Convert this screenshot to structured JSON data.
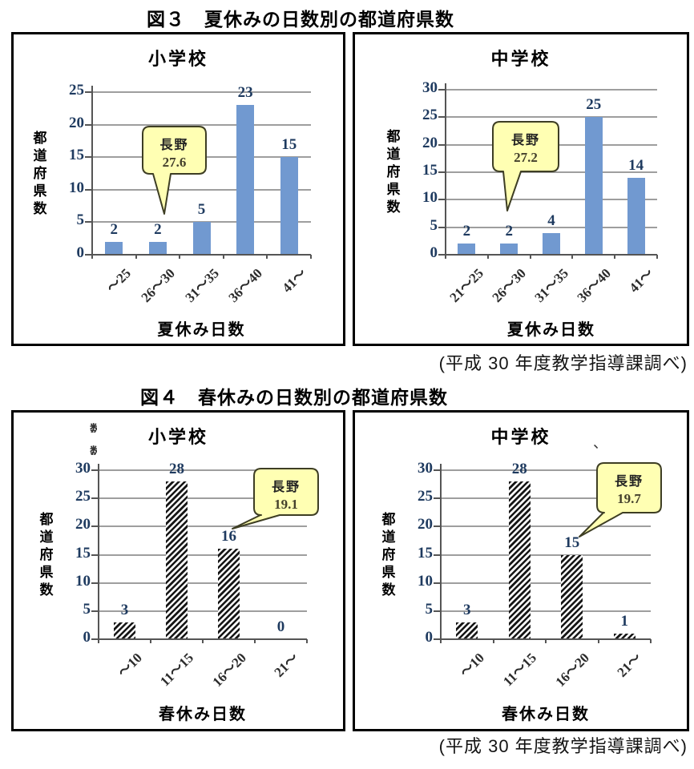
{
  "page": {
    "background": "#ffffff"
  },
  "figure3": {
    "title": "図３　夏休みの日数別の都道府県数",
    "source": "(平成 30 年度教学指導課調べ)"
  },
  "figure4": {
    "title": "図４　春休みの日数別の都道府県数",
    "source": "(平成 30 年度教学指導課調べ)"
  },
  "artifacts": {
    "fig4_elementary_fragment": "数",
    "fig4_junior_title_mark": "、"
  },
  "colors": {
    "bar_blue": "#7199d0",
    "hatch_dark": "#161616",
    "gridline": "#9e9e9e",
    "axis": "#555555",
    "number_text": "#1e3a5f",
    "callout_fill": "#ffffb3",
    "callout_border": "#3e3e24"
  },
  "chart_data": [
    {
      "id": "fig3-elementary",
      "figure": "図３ 夏休みの日数別の都道府県数",
      "type": "bar",
      "title": "小学校",
      "ylabel": "都道府県数",
      "xlabel": "夏休み日数",
      "categories": [
        "～25",
        "26～30",
        "31～35",
        "36～40",
        "41～"
      ],
      "values": [
        2,
        2,
        5,
        23,
        15
      ],
      "ylim": [
        0,
        25
      ],
      "ytick_step": 5,
      "grid": true,
      "legend": "none",
      "bar_style": "solid",
      "annotation": {
        "line1": "長野",
        "line2": "27.6",
        "target_category": "26～30"
      }
    },
    {
      "id": "fig3-junior",
      "figure": "図３ 夏休みの日数別の都道府県数",
      "type": "bar",
      "title": "中学校",
      "ylabel": "都道府県数",
      "xlabel": "夏休み日数",
      "categories": [
        "21～25",
        "26～30",
        "31～35",
        "36～40",
        "41～"
      ],
      "values": [
        2,
        2,
        4,
        25,
        14
      ],
      "ylim": [
        0,
        30
      ],
      "ytick_step": 5,
      "grid": true,
      "legend": "none",
      "bar_style": "solid",
      "annotation": {
        "line1": "長野",
        "line2": "27.2",
        "target_category": "26～30"
      }
    },
    {
      "id": "fig4-elementary",
      "figure": "図４ 春休みの日数別の都道府県数",
      "type": "bar",
      "title": "小学校",
      "ylabel": "都道府県数",
      "xlabel": "春休み日数",
      "categories": [
        "～10",
        "11～15",
        "16～20",
        "21～"
      ],
      "values": [
        3,
        28,
        16,
        0
      ],
      "ylim": [
        0,
        30
      ],
      "ytick_step": 5,
      "grid": true,
      "legend": "none",
      "bar_style": "hatch",
      "annotation": {
        "line1": "長野",
        "line2": "19.1",
        "target_category": "16～20"
      }
    },
    {
      "id": "fig4-junior",
      "figure": "図４ 春休みの日数別の都道府県数",
      "type": "bar",
      "title": "中学校",
      "ylabel": "都道府県数",
      "xlabel": "春休み日数",
      "categories": [
        "～10",
        "11～15",
        "16～20",
        "21～"
      ],
      "values": [
        3,
        28,
        15,
        1
      ],
      "ylim": [
        0,
        30
      ],
      "ytick_step": 5,
      "grid": true,
      "legend": "none",
      "bar_style": "hatch",
      "annotation": {
        "line1": "長野",
        "line2": "19.7",
        "target_category": "16～20"
      }
    }
  ]
}
